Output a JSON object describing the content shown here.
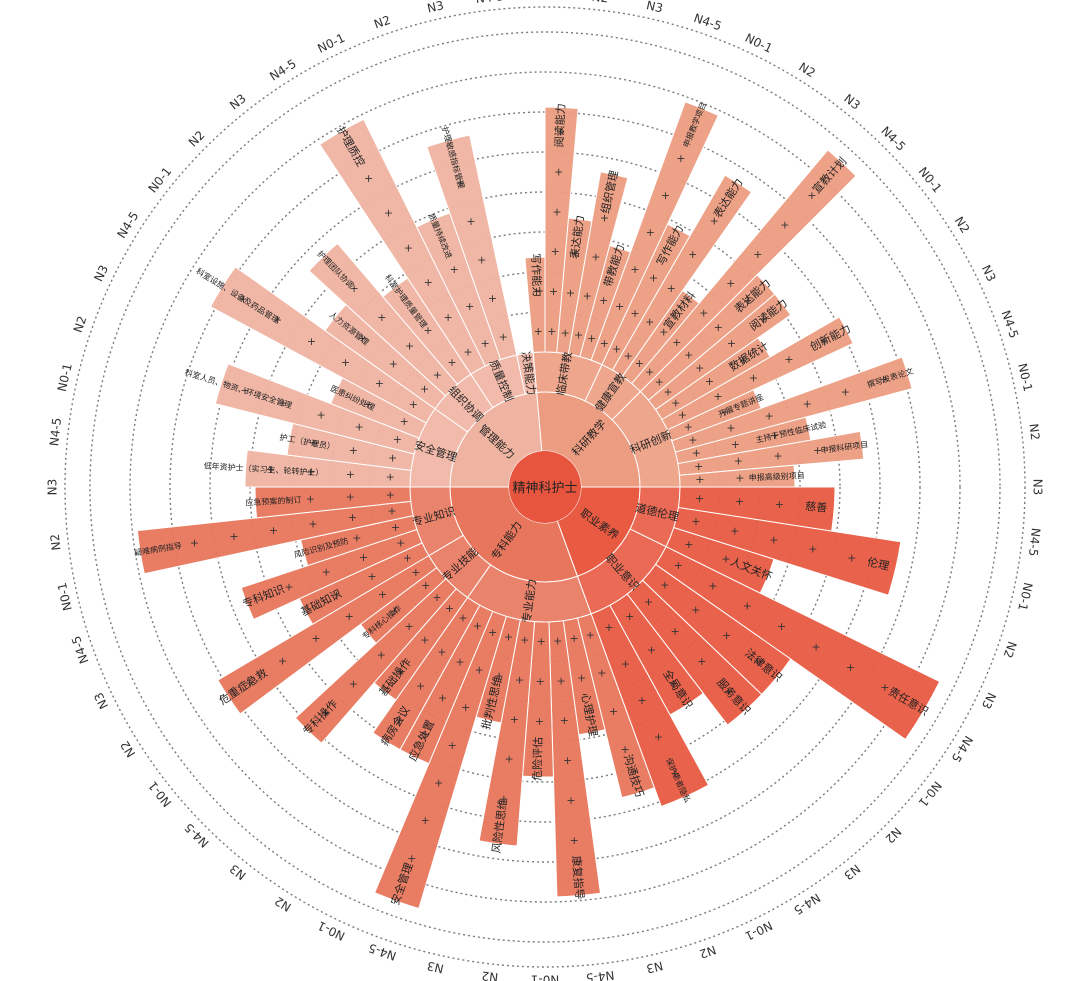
{
  "palette": {
    "hub": "#e8553f",
    "management": "#efb3a1",
    "research": "#ec9c80",
    "professional": "#e8765c",
    "ethics": "#e85a42"
  },
  "center": {
    "label": "精神科护士"
  },
  "level_label_sequence": [
    "N0-1",
    "N2",
    "N3",
    "N4-5"
  ],
  "domains": [
    {
      "id": "management",
      "label": "管理能力",
      "groups": [
        {
          "label": "安全管理",
          "items": [
            "低年资护士（实习生、轮转护士）",
            "护工（护理员）",
            "科室人员、物资、环境安全管理",
            "医患纠纷处理",
            "科室设施、设备及药品管理"
          ]
        },
        {
          "label": "组织协调",
          "items": [
            "人力资源管理",
            "护理团队协调",
            "科室护理质量管理"
          ]
        },
        {
          "label": "质量控制",
          "items": [
            "护理质控",
            "质量持续改进",
            "护理敏感指标管理"
          ]
        },
        {
          "label": "决策能力",
          "items": []
        }
      ]
    },
    {
      "id": "research",
      "label": "科研教学",
      "groups": [
        {
          "label": "临床带教",
          "items": [
            "写作能力",
            "阅读能力",
            "表达能力",
            "组织管理",
            "带教能力",
            "申报教学项目"
          ]
        },
        {
          "label": "健康宣教",
          "items": [
            "写作能力",
            "表达能力",
            "宣教材料",
            "宣教计划"
          ]
        },
        {
          "label": "科研创新",
          "items": [
            "表达能力",
            "阅读能力",
            "数据统计",
            "创新能力",
            "开展专题讲座",
            "撰写发表论文",
            "主持干预性临床试验",
            "申报科研项目",
            "申报高级别项目"
          ]
        }
      ]
    },
    {
      "id": "professional",
      "label": "专科能力",
      "groups": [
        {
          "label": "专业能力",
          "items": [
            "沟通技巧",
            "心理护理",
            "康复指导",
            "危险评估",
            "风险性思维",
            "批判性思维",
            "安全管理",
            "应急处置",
            "病房会议"
          ]
        },
        {
          "label": "专业技能",
          "items": [
            "基础操作",
            "专科操作",
            "专科核心操作",
            "危重症急救"
          ]
        },
        {
          "label": "专业知识",
          "items": [
            "基础知识",
            "专科知识",
            "风险识别及预防",
            "疑难病例指导",
            "应急预案的制订"
          ]
        }
      ]
    },
    {
      "id": "ethics",
      "label": "职业素养",
      "groups": [
        {
          "label": "道德伦理",
          "items": [
            "慈善",
            "伦理",
            "人文关怀"
          ]
        },
        {
          "label": "职业意识",
          "items": [
            "责任意识",
            "法律意识",
            "服务意识",
            "全局意识",
            "保护患者隐私"
          ]
        }
      ]
    }
  ]
}
